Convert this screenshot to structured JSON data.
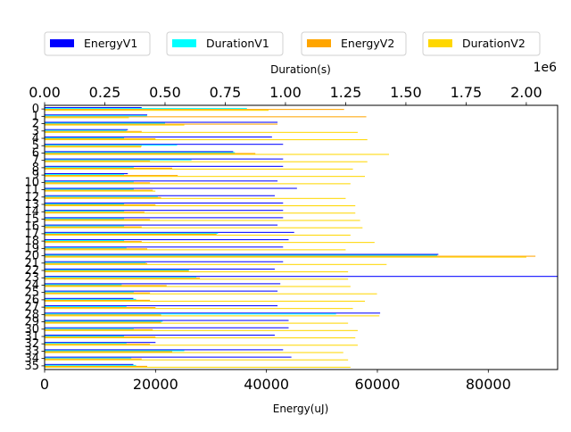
{
  "chart_data": {
    "type": "bar",
    "orientation": "horizontal",
    "categories": [
      "0",
      "1",
      "2",
      "3",
      "4",
      "5",
      "6",
      "7",
      "8",
      "9",
      "10",
      "11",
      "12",
      "13",
      "14",
      "15",
      "16",
      "17",
      "18",
      "19",
      "20",
      "21",
      "22",
      "23",
      "24",
      "25",
      "26",
      "27",
      "28",
      "29",
      "30",
      "31",
      "32",
      "33",
      "34",
      "35"
    ],
    "bottom_axis": {
      "label": "Energy(uJ)",
      "lim": [
        0,
        92500
      ],
      "ticks": [
        0,
        20000,
        40000,
        60000,
        80000
      ],
      "tick_labels": [
        "0",
        "20000",
        "40000",
        "60000",
        "80000"
      ]
    },
    "top_axis": {
      "label": "Duration(s)",
      "lim": [
        0,
        2.13
      ],
      "ticks": [
        0,
        0.25,
        0.5,
        0.75,
        1.0,
        1.25,
        1.5,
        1.75,
        2.0
      ],
      "tick_labels": [
        "0.00",
        "0.25",
        "0.50",
        "0.75",
        "1.00",
        "1.25",
        "1.50",
        "1.75",
        "2.00"
      ],
      "scale_label": "1e6"
    },
    "legend_position": "top",
    "series": [
      {
        "name": "EnergyV1",
        "axis": "bottom",
        "color": "#0000ff",
        "values": [
          17500,
          18500,
          42000,
          15000,
          41000,
          43000,
          34000,
          43000,
          43000,
          15000,
          42000,
          45500,
          41500,
          43000,
          43000,
          43000,
          42000,
          45000,
          44000,
          43000,
          71000,
          43000,
          41500,
          92500,
          42500,
          42000,
          16000,
          42000,
          60500,
          44000,
          44000,
          41500,
          20000,
          43000,
          44500,
          16000
        ]
      },
      {
        "name": "DurationV1",
        "axis": "top",
        "color": "#00ffff",
        "values": [
          840000,
          425000,
          500000,
          340000,
          330000,
          550000,
          790000,
          610000,
          370000,
          330000,
          370000,
          370000,
          470000,
          330000,
          330000,
          330000,
          330000,
          720000,
          330000,
          340000,
          1630000,
          420000,
          600000,
          630000,
          320000,
          370000,
          380000,
          340000,
          1210000,
          490000,
          370000,
          330000,
          340000,
          580000,
          360000,
          380000
        ]
      },
      {
        "name": "EnergyV2",
        "axis": "bottom",
        "color": "#ffa500",
        "values": [
          54000,
          58000,
          42000,
          17500,
          20000,
          17500,
          38000,
          19000,
          23000,
          24000,
          19000,
          19500,
          21000,
          20000,
          18000,
          19000,
          17500,
          31000,
          17500,
          18500,
          88500,
          18500,
          26000,
          28000,
          22000,
          19000,
          19000,
          20000,
          21000,
          21000,
          19500,
          20000,
          19000,
          23000,
          17500,
          18500
        ]
      },
      {
        "name": "DurationV2",
        "axis": "top",
        "color": "#ffd700",
        "values": [
          930000,
          350000,
          580000,
          1300000,
          1340000,
          400000,
          1430000,
          1340000,
          1280000,
          1330000,
          1270000,
          460000,
          1250000,
          1290000,
          1290000,
          1310000,
          1320000,
          1270000,
          1370000,
          1250000,
          2000000,
          1420000,
          1260000,
          1260000,
          1270000,
          1380000,
          1330000,
          1280000,
          1390000,
          1260000,
          1300000,
          1290000,
          1300000,
          1240000,
          1260000,
          1270000
        ]
      }
    ]
  }
}
